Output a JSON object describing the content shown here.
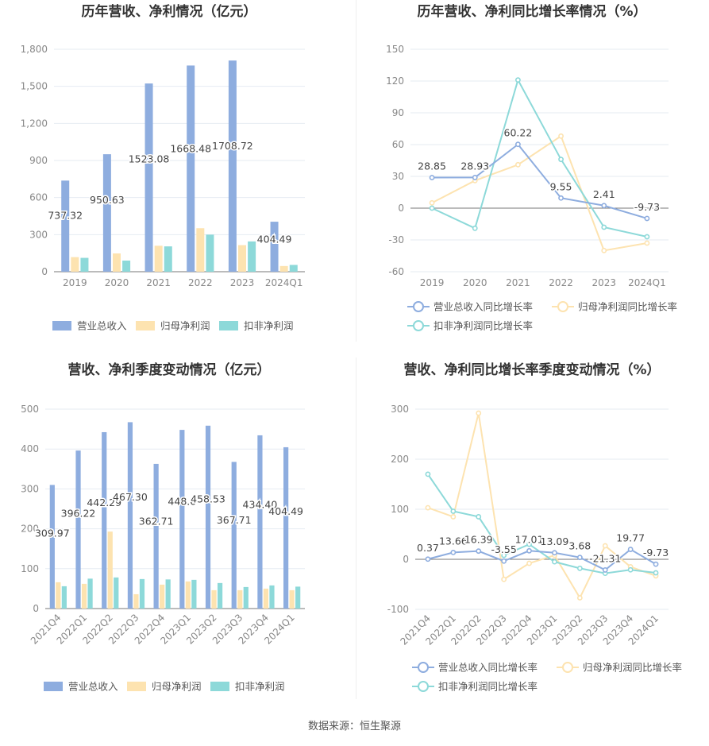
{
  "footer": {
    "source": "数据来源：恒生聚源"
  },
  "chart_data": [
    {
      "type": "bar",
      "title": "历年营收、净利情况（亿元）",
      "categories": [
        "2019",
        "2020",
        "2021",
        "2022",
        "2023",
        "2024Q1"
      ],
      "series": [
        {
          "name": "营业总收入",
          "color": "#8eaddf",
          "values": [
            737.32,
            950.63,
            1523.08,
            1668.48,
            1708.72,
            404.49
          ],
          "labels": [
            "737.32",
            "950.63",
            "1523.08",
            "1668.48",
            "1708.72",
            "404.49"
          ]
        },
        {
          "name": "归母净利润",
          "color": "#fde3b0",
          "values": [
            118,
            148,
            210,
            352,
            215,
            46
          ]
        },
        {
          "name": "扣非净利润",
          "color": "#8dd9d9",
          "values": [
            112,
            90,
            205,
            300,
            245,
            55
          ]
        }
      ],
      "yticks": [
        "0",
        "300",
        "600",
        "900",
        "1,200",
        "1,500",
        "1,800"
      ],
      "ylim": [
        0,
        1800
      ],
      "legend": "bottom",
      "grid": true
    },
    {
      "type": "line",
      "title": "历年营收、净利同比增长率情况（%）",
      "categories": [
        "2019",
        "2020",
        "2021",
        "2022",
        "2023",
        "2024Q1"
      ],
      "series": [
        {
          "name": "营业总收入同比增长率",
          "color": "#8eaddf",
          "values": [
            28.85,
            28.93,
            60.22,
            9.55,
            2.41,
            -9.73
          ],
          "labels": [
            "28.85",
            "28.93",
            "60.22",
            "9.55",
            "2.41",
            "-9.73"
          ]
        },
        {
          "name": "归母净利润同比增长率",
          "color": "#fde3b0",
          "values": [
            5,
            26,
            41,
            68,
            -40,
            -33
          ]
        },
        {
          "name": "扣非净利润同比增长率",
          "color": "#8dd9d9",
          "values": [
            0,
            -19,
            121,
            46,
            -18,
            -27
          ]
        }
      ],
      "yticks": [
        "-60",
        "-30",
        "0",
        "30",
        "60",
        "90",
        "120",
        "150"
      ],
      "ylim": [
        -60,
        150
      ],
      "legend": "bottom",
      "grid": true
    },
    {
      "type": "bar",
      "title": "营收、净利季度变动情况（亿元）",
      "categories": [
        "2021Q4",
        "2022Q1",
        "2022Q2",
        "2022Q3",
        "2022Q4",
        "2023Q1",
        "2023Q2",
        "2023Q3",
        "2023Q4",
        "2024Q1"
      ],
      "series": [
        {
          "name": "营业总收入",
          "color": "#8eaddf",
          "values": [
            309.97,
            396.22,
            442.29,
            467.3,
            362.71,
            448.0,
            458.53,
            367.71,
            434.4,
            404.49
          ],
          "labels": [
            "309.97",
            "396.22",
            "442.29",
            "467.30",
            "362.71",
            "448.0",
            "458.53",
            "367.71",
            "434.40",
            "404.49"
          ]
        },
        {
          "name": "归母净利润",
          "color": "#fde3b0",
          "values": [
            66,
            62,
            193,
            36,
            60,
            68,
            46,
            46,
            50,
            46
          ]
        },
        {
          "name": "扣非净利润",
          "color": "#8dd9d9",
          "values": [
            56,
            75,
            78,
            74,
            73,
            72,
            64,
            54,
            58,
            55
          ]
        }
      ],
      "yticks": [
        "0",
        "100",
        "200",
        "300",
        "400",
        "500"
      ],
      "ylim": [
        0,
        500
      ],
      "legend": "bottom",
      "grid": true
    },
    {
      "type": "line",
      "title": "营收、净利同比增长率季度变动情况（%）",
      "categories": [
        "2021Q4",
        "2022Q1",
        "2022Q2",
        "2022Q3",
        "2022Q4",
        "2023Q1",
        "2023Q2",
        "2023Q3",
        "2023Q4",
        "2024Q1"
      ],
      "series": [
        {
          "name": "营业总收入同比增长率",
          "color": "#8eaddf",
          "values": [
            0.37,
            13.66,
            16.39,
            -3.55,
            17.01,
            13.09,
            3.68,
            -21.31,
            19.77,
            -9.73
          ],
          "labels": [
            "0.37",
            "13.66",
            "16.39",
            "-3.55",
            "17.01",
            "13.09",
            "3.68",
            "-21.31",
            "19.77",
            "-9.73"
          ]
        },
        {
          "name": "归母净利润同比增长率",
          "color": "#fde3b0",
          "values": [
            103,
            85,
            292,
            -40,
            -8,
            8,
            -77,
            27,
            -15,
            -33
          ]
        },
        {
          "name": "扣非净利润同比增长率",
          "color": "#8dd9d9",
          "values": [
            170,
            96,
            85,
            8,
            30,
            -5,
            -18,
            -28,
            -21,
            -27
          ]
        }
      ],
      "yticks": [
        "-100",
        "0",
        "100",
        "200",
        "300"
      ],
      "ylim": [
        -100,
        300
      ],
      "legend": "bottom",
      "grid": true
    }
  ]
}
